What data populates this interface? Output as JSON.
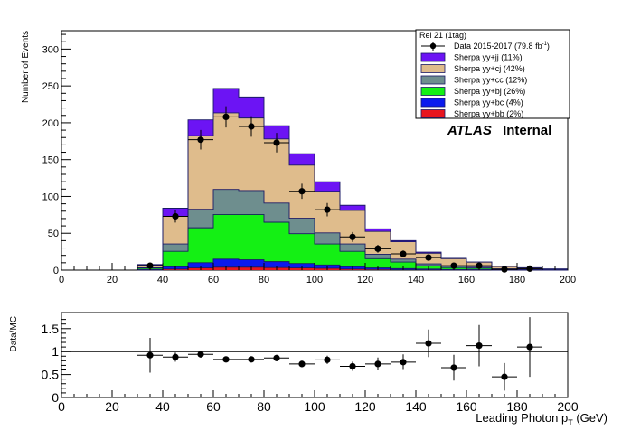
{
  "chart_data": [
    {
      "type": "stacked-histogram",
      "panel": "main",
      "title": "",
      "ylabel": "Number of Events",
      "xlim": [
        0,
        200
      ],
      "ylim": [
        0,
        325
      ],
      "x_ticks": [
        0,
        20,
        40,
        60,
        80,
        100,
        120,
        140,
        160,
        180,
        200
      ],
      "y_ticks": [
        0,
        50,
        100,
        150,
        200,
        250,
        300
      ],
      "bin_edges": [
        30,
        40,
        50,
        60,
        70,
        80,
        90,
        100,
        110,
        120,
        130,
        140,
        150,
        160,
        170,
        180,
        190,
        200
      ],
      "series": [
        {
          "name": "Sherpa yy+bb (2%)",
          "color": "#e8141e",
          "values": [
            0.2,
            1.5,
            3,
            4,
            4,
            3.5,
            3,
            2.5,
            1.5,
            1,
            0.5,
            0.5,
            0.3,
            0.2,
            0.1,
            0.1,
            0
          ]
        },
        {
          "name": "Sherpa yy+bc (4%)",
          "color": "#0b1aee",
          "values": [
            0.5,
            3,
            7,
            11,
            10,
            8,
            6,
            4.5,
            3,
            2,
            1.5,
            1,
            0.5,
            0.4,
            0.2,
            0.1,
            0.1
          ]
        },
        {
          "name": "Sherpa yy+bj (26%)",
          "color": "#14f014",
          "values": [
            1.8,
            21,
            47.5,
            60.5,
            61.5,
            53.5,
            40.5,
            28.5,
            21,
            12.5,
            9,
            4.5,
            2.7,
            1.9,
            0.7,
            0.4,
            0.2
          ]
        },
        {
          "name": "Sherpa yy+cc (12%)",
          "color": "#6e8e8e",
          "values": [
            0.7,
            10,
            25,
            34,
            32.5,
            26,
            21,
            15,
            10,
            6,
            4,
            2.5,
            1.8,
            1.5,
            0.7,
            0.4,
            0.2
          ]
        },
        {
          "name": "Sherpa yy+cj (42%)",
          "color": "#dfbc8c",
          "values": [
            3.5,
            37.5,
            100,
            104,
            98.5,
            87,
            72,
            56.5,
            45.5,
            31,
            23.5,
            14.5,
            10.2,
            6.8,
            3.2,
            2.2,
            1
          ]
        },
        {
          "name": "Sherpa yy+jj (11%)",
          "color": "#6c14f4",
          "values": [
            0.9,
            11,
            21.5,
            33,
            28.5,
            18,
            15.5,
            13,
            7,
            3.5,
            1.5,
            1.5,
            0.5,
            0.2,
            0.1,
            0.1,
            0.1
          ]
        }
      ],
      "data_points": {
        "name": "Data 2015-2017 (79.8 fb",
        "name_superscript": "-1",
        "name_suffix": ")",
        "x": [
          35,
          45,
          55,
          65,
          75,
          85,
          95,
          105,
          115,
          125,
          135,
          145,
          155,
          165,
          175,
          185
        ],
        "y": [
          6,
          73,
          177,
          208,
          195,
          173,
          107,
          82,
          45,
          29,
          22,
          17,
          6,
          6,
          1,
          2
        ],
        "yerr": [
          2.4,
          8.5,
          13.3,
          14.4,
          14,
          13.2,
          10.3,
          9,
          6.7,
          5.4,
          4.7,
          4.1,
          2.4,
          2.4,
          1,
          1.4
        ]
      },
      "legend_header": "Rel 21 (1tag)",
      "legend_position": "top-right",
      "annotation_bold": "ATLAS",
      "annotation": "Internal"
    },
    {
      "type": "ratio",
      "panel": "ratio",
      "ylabel": "Data/MC",
      "xlabel_main": "Leading Photon p",
      "xlabel_sub": "T",
      "xlabel_unit": " (GeV)",
      "xlim": [
        0,
        200
      ],
      "ylim": [
        0,
        1.85
      ],
      "reference_line": 1,
      "x_ticks": [
        0,
        20,
        40,
        60,
        80,
        100,
        120,
        140,
        160,
        180,
        200
      ],
      "y_ticks": [
        0,
        0.5,
        1,
        1.5
      ],
      "points": {
        "x": [
          35,
          45,
          55,
          65,
          75,
          85,
          95,
          105,
          115,
          125,
          135,
          145,
          155,
          165,
          175,
          185
        ],
        "y": [
          0.92,
          0.88,
          0.94,
          0.83,
          0.83,
          0.86,
          0.73,
          0.82,
          0.68,
          0.73,
          0.77,
          1.18,
          0.65,
          1.13,
          0.45,
          1.1
        ],
        "yerr": [
          0.38,
          0.1,
          0.07,
          0.06,
          0.06,
          0.07,
          0.07,
          0.09,
          0.1,
          0.14,
          0.17,
          0.3,
          0.28,
          0.45,
          0.3,
          0.65
        ]
      }
    }
  ]
}
